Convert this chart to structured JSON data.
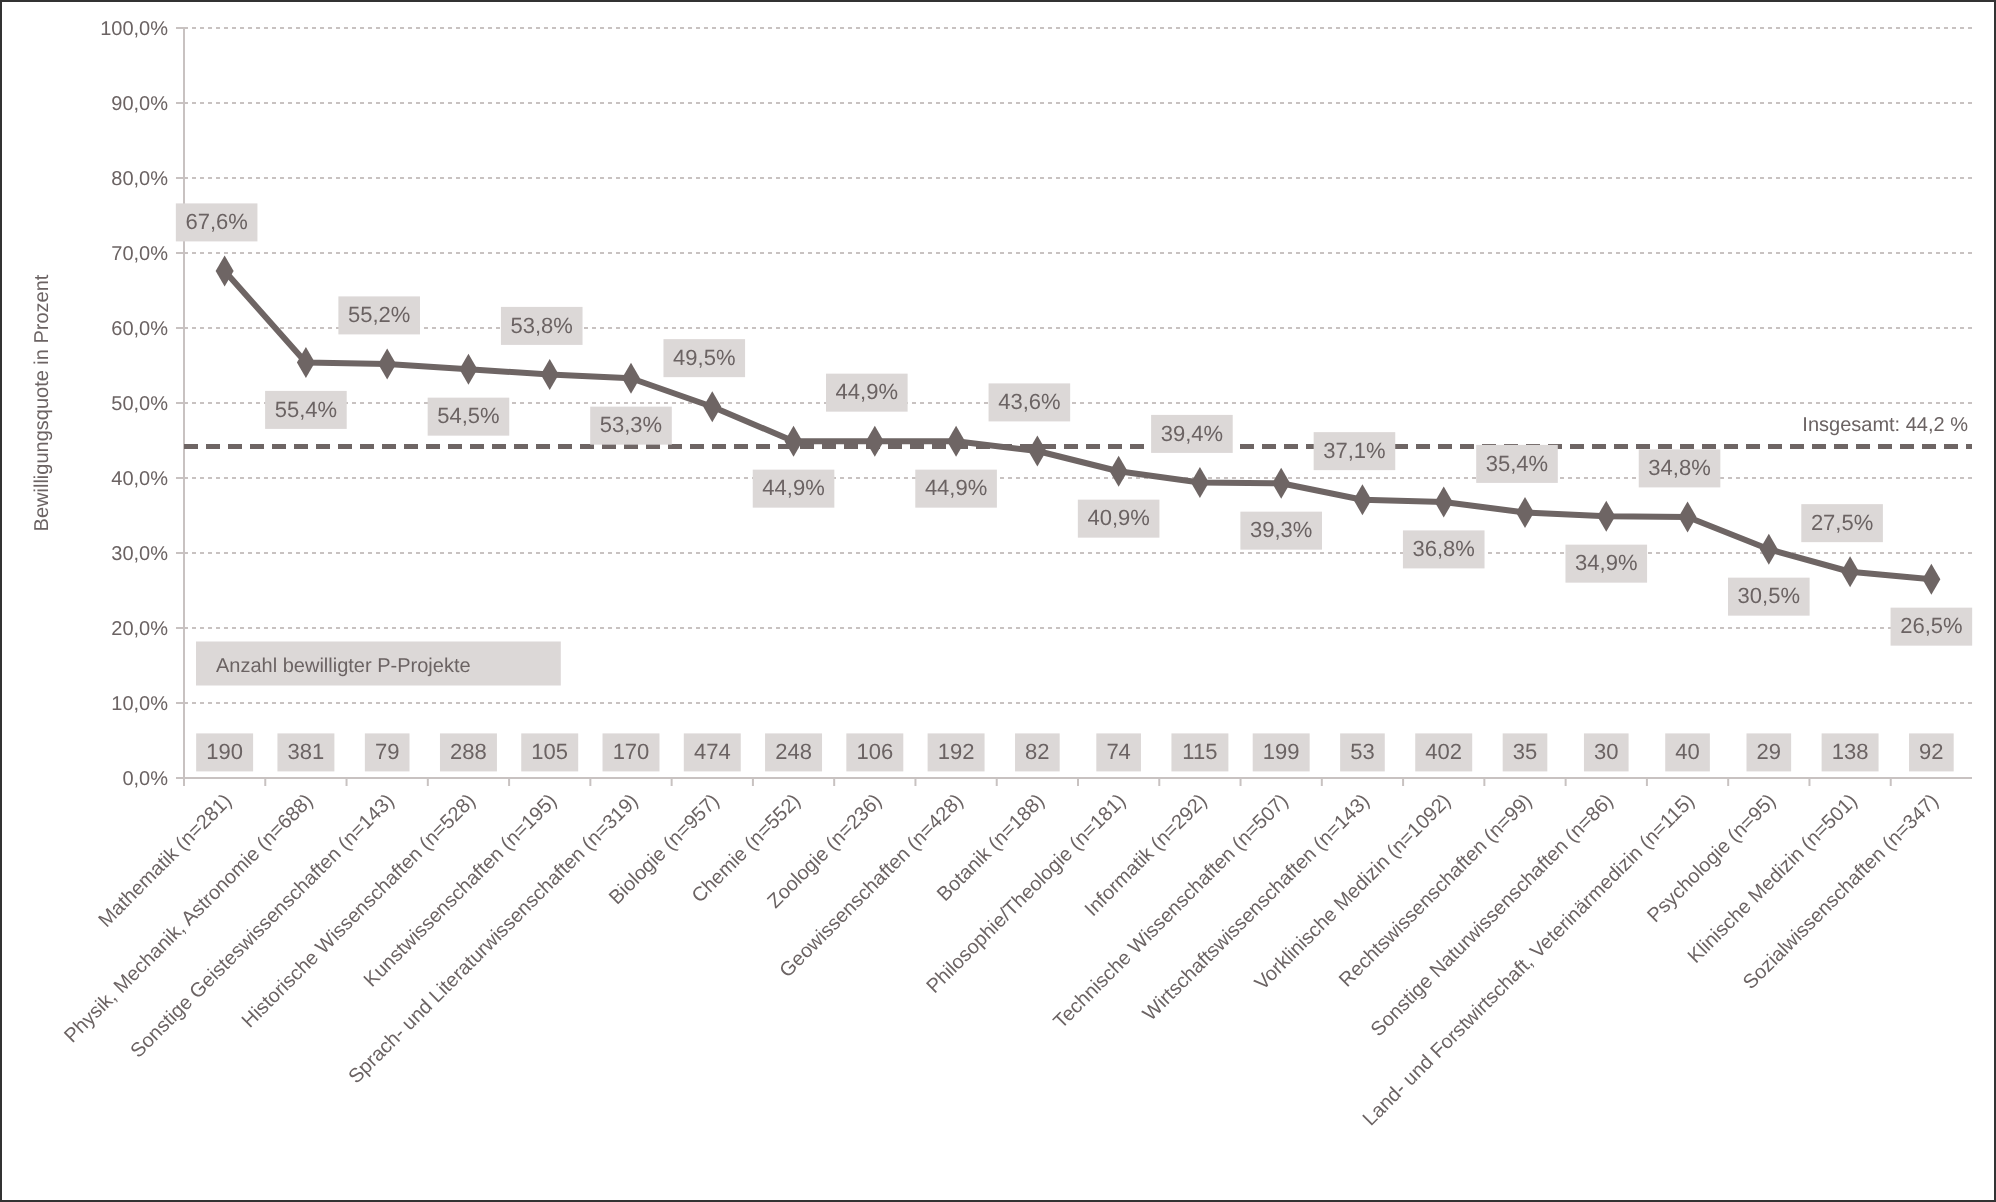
{
  "chart_data": {
    "type": "line",
    "ylabel": "Bewilligungsquote in Prozent",
    "categories": [
      "Mathematik (n=281)",
      "Physik, Mechanik, Astronomie (n=688)",
      "Sonstige Geisteswissenschaften (n=143)",
      "Historische Wissenschaften (n=528)",
      "Kunstwissenschaften (n=195)",
      "Sprach- und Literaturwissenschaften (n=319)",
      "Biologie (n=957)",
      "Chemie (n=552)",
      "Zoologie (n=236)",
      "Geowissenschaften (n=428)",
      "Botanik (n=188)",
      "Philosophie/Theologie (n=181)",
      "Informatik (n=292)",
      "Technische Wissenschaften (n=507)",
      "Wirtschaftswissenschaften (n=143)",
      "Vorklinische Medizin (n=1092)",
      "Rechtswissenschaften (n=99)",
      "Sonstige Naturwissenschaften (n=86)",
      "Land- und Forstwirtschaft, Veterinärmedizin (n=115)",
      "Psychologie (n=95)",
      "Klinische Medizin (n=501)",
      "Sozialwissenschaften (n=347)"
    ],
    "series": [
      {
        "color": "#6e6564",
        "values": [
          67.6,
          55.4,
          55.2,
          54.5,
          53.8,
          53.3,
          49.5,
          44.9,
          44.9,
          44.9,
          43.6,
          40.9,
          39.4,
          39.3,
          37.1,
          36.8,
          35.4,
          34.9,
          34.8,
          30.5,
          27.5,
          26.5
        ],
        "value_labels": [
          "67,6%",
          "55,4%",
          "55,2%",
          "54,5%",
          "53,8%",
          "53,3%",
          "49,5%",
          "44,9%",
          "44,9%",
          "44,9%",
          "43,6%",
          "40,9%",
          "39,4%",
          "39,3%",
          "37,1%",
          "36,8%",
          "35,4%",
          "34,9%",
          "34,8%",
          "30,5%",
          "27,5%",
          "26,5%"
        ]
      }
    ],
    "ylim": [
      0,
      100
    ],
    "yticks": [
      {
        "value": 0,
        "label": "0,0%"
      },
      {
        "value": 10,
        "label": "10,0%"
      },
      {
        "value": 20,
        "label": "20,0%"
      },
      {
        "value": 30,
        "label": "30,0%"
      },
      {
        "value": 40,
        "label": "40,0%"
      },
      {
        "value": 50,
        "label": "50,0%"
      },
      {
        "value": 60,
        "label": "60,0%"
      },
      {
        "value": 70,
        "label": "70,0%"
      },
      {
        "value": 80,
        "label": "80,0%"
      },
      {
        "value": 90,
        "label": "90,0%"
      },
      {
        "value": 100,
        "label": "100,0%"
      }
    ],
    "grid": "y",
    "marker": "diamond",
    "line_style": "solid",
    "ref_lines": [
      {
        "axis": "y",
        "value": 44.2,
        "label": "Insgesamt: 44,2 %",
        "color": "#6e6564",
        "line_style": "dashed"
      }
    ],
    "annotations": [
      "Anzahl bewilligter P-Projekte",
      "190",
      "381",
      "79",
      "288",
      "105",
      "170",
      "474",
      "248",
      "106",
      "192",
      "82",
      "74",
      "115",
      "199",
      "53",
      "402",
      "35",
      "30",
      "40",
      "29",
      "138",
      "92"
    ]
  }
}
